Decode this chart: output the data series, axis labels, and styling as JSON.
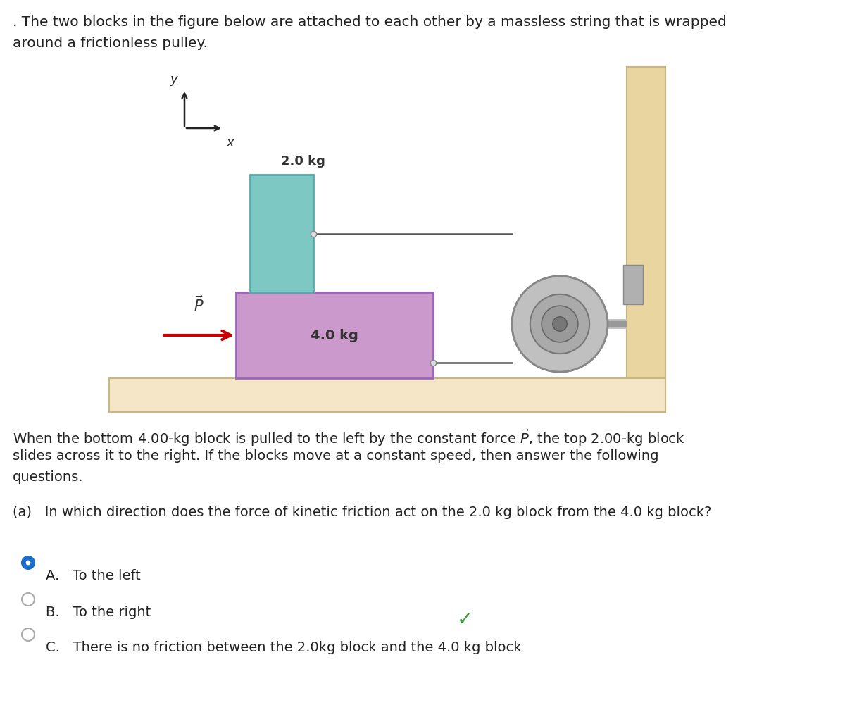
{
  "bg_color": "#ffffff",
  "floor_color": "#f5e6c8",
  "wall_color": "#e8d5a0",
  "block_4kg_color": "#cc99cc",
  "block_2kg_color": "#7ec8c4",
  "pulley_outer_color": "#b8b8b8",
  "pulley_mid_color": "#999999",
  "pulley_inner_color": "#888888",
  "pulley_hub_color": "#777777",
  "axle_color": "#aaaaaa",
  "arrow_color": "#cc0000",
  "string_color": "#555555",
  "radio_fill_A": "#1a6fcc",
  "radio_stroke_BC": "#aaaaaa",
  "checkmark_color": "#3a9a3a",
  "text_color": "#222222",
  "header_line1": ". The two blocks in the figure below are attached to each other by a massless string that is wrapped",
  "header_line2": "around a frictionless pulley.",
  "para_line1": "When the bottom 4.00-kg block is pulled to the left by the constant force",
  "para_rest": ", the top 2.00-kg block",
  "para_line2": "slides across it to the right. If the blocks move at a constant speed, then answer the following",
  "para_line3": "questions.",
  "q_text": "(a)   In which direction does the force of kinetic friction act on the 2.0 kg block from the 4.0 kg block?",
  "opt_A_text": "A.   To the left",
  "opt_B_text": "B.   To the right",
  "opt_C_text": "C.   There is no friction between the 2.0kg block and the 4.0 kg block"
}
